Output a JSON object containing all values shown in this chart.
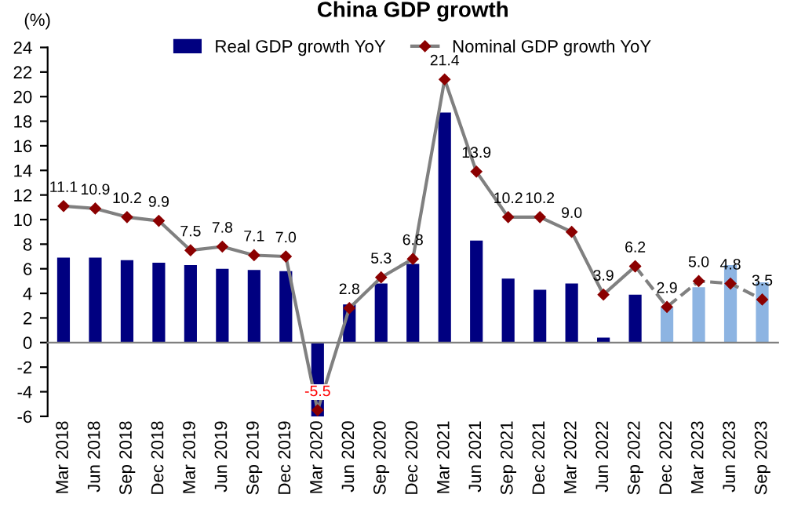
{
  "chart_data": {
    "type": "bar",
    "title": "China GDP growth",
    "ylabel": "(%)",
    "categories": [
      "Mar 2018",
      "Jun 2018",
      "Sep 2018",
      "Dec 2018",
      "Mar 2019",
      "Jun 2019",
      "Sep 2019",
      "Dec 2019",
      "Mar 2020",
      "Jun 2020",
      "Sep 2020",
      "Dec 2020",
      "Mar 2021",
      "Jun 2021",
      "Sep 2021",
      "Dec 2021",
      "Mar 2022",
      "Jun 2022",
      "Sep 2022",
      "Dec 2022",
      "Mar 2023",
      "Jun 2023",
      "Sep 2023"
    ],
    "series": [
      {
        "name": "Real GDP growth YoY",
        "color": "#000080",
        "colors": [
          "#000080",
          "#000080",
          "#000080",
          "#000080",
          "#000080",
          "#000080",
          "#000080",
          "#000080",
          "#000080",
          "#000080",
          "#000080",
          "#000080",
          "#000080",
          "#000080",
          "#000080",
          "#000080",
          "#000080",
          "#000080",
          "#000080",
          "#8db4e2",
          "#8db4e2",
          "#8db4e2",
          "#8db4e2"
        ],
        "values": [
          6.9,
          6.9,
          6.7,
          6.5,
          6.3,
          6.0,
          5.9,
          5.8,
          -6.0,
          3.1,
          4.8,
          6.4,
          18.7,
          8.3,
          5.2,
          4.3,
          4.8,
          0.4,
          3.9,
          2.9,
          4.5,
          6.3,
          4.9
        ]
      },
      {
        "name": "Nominal GDP growth YoY",
        "type": "line",
        "color": "#808080",
        "marker": "diamond",
        "line_style": "solid",
        "values": [
          11.1,
          10.9,
          10.2,
          9.9,
          7.5,
          7.8,
          7.1,
          7.0,
          -5.5,
          2.8,
          5.3,
          6.8,
          21.4,
          13.9,
          10.2,
          10.2,
          9.0,
          3.9,
          6.2,
          null,
          null,
          null,
          null
        ],
        "value_labels": [
          "11.1",
          "10.9",
          "10.2",
          "9.9",
          "7.5",
          "7.8",
          "7.1",
          "7.0",
          "-5.5",
          "2.8",
          "5.3",
          "6.8",
          "21.4",
          "13.9",
          "10.2",
          "10.2",
          "9.0",
          "3.9",
          "6.2",
          null,
          null,
          null,
          null
        ]
      },
      {
        "type": "line",
        "color": "#808080",
        "marker": "diamond",
        "line_style": "dashed",
        "values": [
          null,
          null,
          null,
          null,
          null,
          null,
          null,
          null,
          null,
          null,
          null,
          null,
          null,
          null,
          null,
          null,
          null,
          null,
          6.2,
          2.9,
          5.0,
          4.8,
          3.5
        ],
        "value_labels": [
          null,
          null,
          null,
          null,
          null,
          null,
          null,
          null,
          null,
          null,
          null,
          null,
          null,
          null,
          null,
          null,
          null,
          null,
          null,
          "2.9",
          "5.0",
          "4.8",
          "3.5"
        ]
      }
    ],
    "ylim": [
      -6,
      24
    ],
    "yticks": [
      -6,
      -4,
      -2,
      0,
      2,
      4,
      6,
      8,
      10,
      12,
      14,
      16,
      18,
      20,
      22,
      24
    ],
    "legend": "top"
  }
}
